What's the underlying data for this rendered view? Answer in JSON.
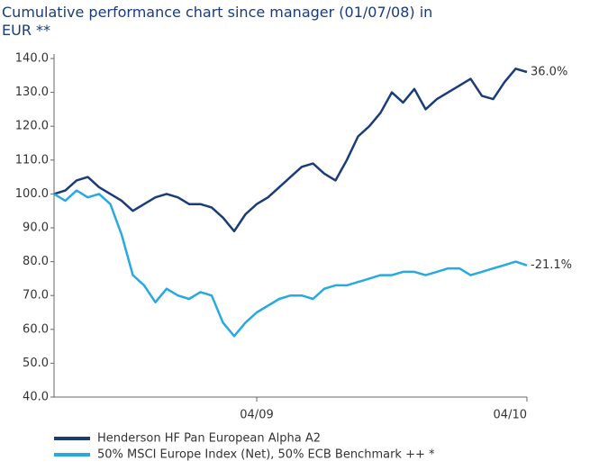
{
  "chart_data": {
    "type": "line",
    "title": "Cumulative performance chart since manager (01/07/08) in EUR  **",
    "categories": [
      null,
      null,
      null,
      null,
      null,
      null,
      null,
      null,
      null,
      null,
      null,
      null,
      null,
      null,
      null,
      null,
      null,
      null,
      "04/09",
      null,
      null,
      null,
      null,
      null,
      null,
      null,
      null,
      null,
      null,
      null,
      null,
      null,
      null,
      null,
      null,
      null,
      null,
      null,
      null,
      null,
      null,
      null,
      "04/10"
    ],
    "series": [
      {
        "name": "Henderson HF Pan European Alpha A2",
        "color": "#1b3c78",
        "end_label": "36.0%",
        "values": [
          100,
          101,
          104,
          105,
          102,
          100,
          98,
          95,
          97,
          99,
          100,
          99,
          97,
          97,
          96,
          93,
          89,
          94,
          97,
          99,
          102,
          105,
          108,
          109,
          106,
          104,
          110,
          117,
          120,
          124,
          130,
          127,
          131,
          125,
          128,
          130,
          132,
          134,
          129,
          128,
          133,
          137,
          136
        ]
      },
      {
        "name": "50% MSCI Europe Index (Net), 50% ECB Benchmark ++ *",
        "color": "#27a9e1",
        "end_label": "-21.1%",
        "values": [
          100,
          98,
          101,
          99,
          100,
          97,
          88,
          76,
          73,
          68,
          72,
          70,
          69,
          71,
          70,
          62,
          58,
          62,
          65,
          67,
          69,
          70,
          70,
          69,
          72,
          73,
          73,
          74,
          75,
          76,
          76,
          77,
          77,
          76,
          77,
          78,
          78,
          76,
          77,
          78,
          79,
          80,
          78.9
        ]
      }
    ],
    "ylim": [
      40,
      140
    ],
    "yticks": [
      {
        "value": 40,
        "label": "40.0"
      },
      {
        "value": 50,
        "label": "50.0"
      },
      {
        "value": 60,
        "label": "60.0"
      },
      {
        "value": 70,
        "label": "70.0"
      },
      {
        "value": 80,
        "label": "80.0"
      },
      {
        "value": 90,
        "label": "90.0"
      },
      {
        "value": 100,
        "label": "100.0"
      },
      {
        "value": 110,
        "label": "110.0"
      },
      {
        "value": 120,
        "label": "120.0"
      },
      {
        "value": 130,
        "label": "130.0"
      },
      {
        "value": 140,
        "label": "140.0"
      }
    ],
    "grid": false
  }
}
